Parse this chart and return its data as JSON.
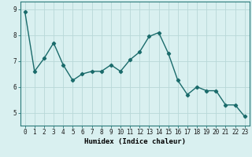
{
  "x": [
    0,
    1,
    2,
    3,
    4,
    5,
    6,
    7,
    8,
    9,
    10,
    11,
    12,
    13,
    14,
    15,
    16,
    17,
    18,
    19,
    20,
    21,
    22,
    23
  ],
  "y": [
    8.9,
    6.6,
    7.1,
    7.7,
    6.85,
    6.25,
    6.5,
    6.6,
    6.6,
    6.85,
    6.6,
    7.05,
    7.35,
    7.95,
    8.1,
    7.3,
    6.25,
    5.7,
    6.0,
    5.85,
    5.85,
    5.3,
    5.3,
    4.85
  ],
  "line_color": "#1a6b6b",
  "marker": "D",
  "marker_size": 2.2,
  "bg_color": "#d9f0f0",
  "grid_color": "#b8d8d8",
  "xlabel": "Humidex (Indice chaleur)",
  "ylim": [
    4.5,
    9.3
  ],
  "xlim": [
    -0.5,
    23.5
  ],
  "yticks": [
    5,
    6,
    7,
    8,
    9
  ],
  "xticks": [
    0,
    1,
    2,
    3,
    4,
    5,
    6,
    7,
    8,
    9,
    10,
    11,
    12,
    13,
    14,
    15,
    16,
    17,
    18,
    19,
    20,
    21,
    22,
    23
  ],
  "tick_fontsize": 5.5,
  "xlabel_fontsize": 6.5,
  "linewidth": 1.0
}
